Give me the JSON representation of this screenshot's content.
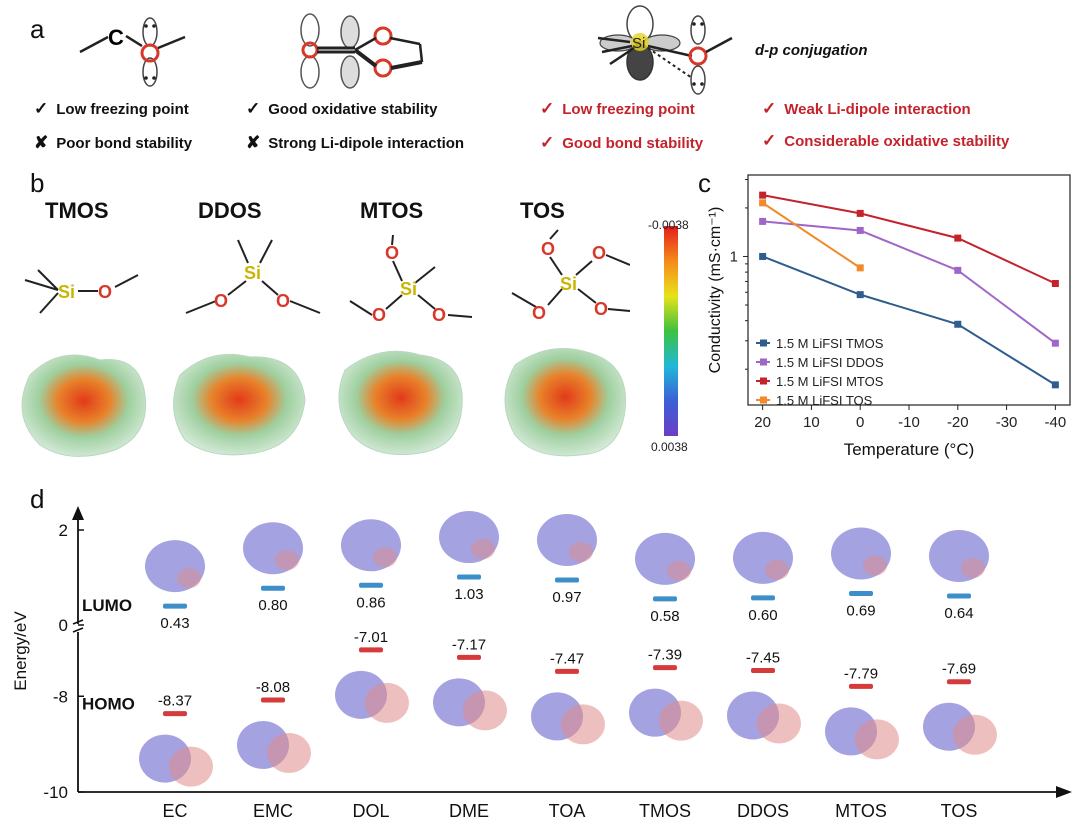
{
  "panel_a": {
    "letter": "a",
    "c_label": "C",
    "si_label": "Si",
    "dp_label": "d-p conjugation",
    "left_items": [
      {
        "mark": "✓",
        "text": "Low freezing point"
      },
      {
        "mark": "✘",
        "text": "Poor bond stability"
      }
    ],
    "mid_items": [
      {
        "mark": "✓",
        "text": "Good oxidative stability"
      },
      {
        "mark": "✘",
        "text": "Strong Li-dipole interaction"
      }
    ],
    "right_items": [
      {
        "mark": "✓",
        "text": "Low freezing point"
      },
      {
        "mark": "✓",
        "text": "Good bond stability"
      },
      {
        "mark": "✓",
        "text": "Weak Li-dipole interaction"
      },
      {
        "mark": "✓",
        "text": "Considerable oxidative stability"
      }
    ],
    "colors": {
      "red": "#c4232b",
      "si": "#e6d21c",
      "oxygen": "#d8382a"
    }
  },
  "panel_b": {
    "letter": "b",
    "molecules": [
      "TMOS",
      "DDOS",
      "MTOS",
      "TOS"
    ],
    "si_label": "Si",
    "o_label": "O",
    "colorbar": {
      "top": "-0.0038",
      "bottom": "0.0038"
    }
  },
  "panel_c": {
    "letter": "c",
    "chart_data": {
      "type": "line",
      "xlabel": "Temperature (°C)",
      "ylabel": "Conductivity (mS·cm⁻¹)",
      "yscale": "log",
      "ylim": [
        0.12,
        3.2
      ],
      "xlim": [
        23,
        -43
      ],
      "xticks": [
        "20",
        "10",
        "0",
        "-10",
        "-20",
        "-30",
        "-40"
      ],
      "yticks": [
        "1"
      ],
      "legend_position": "bottom-left",
      "series": [
        {
          "name": "1.5 M LiFSI TMOS",
          "color": "#2e5d8e",
          "x": [
            20,
            0,
            -20,
            -40
          ],
          "y": [
            1.0,
            0.58,
            0.38,
            0.16
          ]
        },
        {
          "name": "1.5 M LiFSI DDOS",
          "color": "#9f66c8",
          "x": [
            20,
            0,
            -20,
            -40
          ],
          "y": [
            1.65,
            1.45,
            0.82,
            0.29
          ]
        },
        {
          "name": "1.5 M LiFSI MTOS",
          "color": "#c4232b",
          "x": [
            20,
            0,
            -20,
            -40
          ],
          "y": [
            2.4,
            1.85,
            1.3,
            0.68
          ]
        },
        {
          "name": "1.5 M LiFSI TOS",
          "color": "#f08a2a",
          "x": [
            20,
            0
          ],
          "y": [
            2.15,
            0.85
          ]
        }
      ]
    }
  },
  "panel_d": {
    "letter": "d",
    "chart_data": {
      "type": "bar",
      "categories": [
        "EC",
        "EMC",
        "DOL",
        "DME",
        "TOA",
        "TMOS",
        "DDOS",
        "MTOS",
        "TOS"
      ],
      "ylabel": "Energy/eV",
      "yticks": [
        "2",
        "0",
        "-8",
        "-10"
      ],
      "series": [
        {
          "name": "LUMO",
          "color": "#3c8fc8",
          "values": [
            0.43,
            0.8,
            0.86,
            1.03,
            0.97,
            0.58,
            0.6,
            0.69,
            0.64
          ],
          "labels": [
            "0.43",
            "0.80",
            "0.86",
            "1.03",
            "0.97",
            "0.58",
            "0.60",
            "0.69",
            "0.64"
          ]
        },
        {
          "name": "HOMO",
          "color": "#d63a3a",
          "values": [
            -8.37,
            -8.08,
            -7.01,
            -7.17,
            -7.47,
            -7.39,
            -7.45,
            -7.79,
            -7.69
          ],
          "labels": [
            "-8.37",
            "-8.08",
            "-7.01",
            "-7.17",
            "-7.47",
            "-7.39",
            "-7.45",
            "-7.79",
            "-7.69"
          ]
        }
      ]
    }
  }
}
